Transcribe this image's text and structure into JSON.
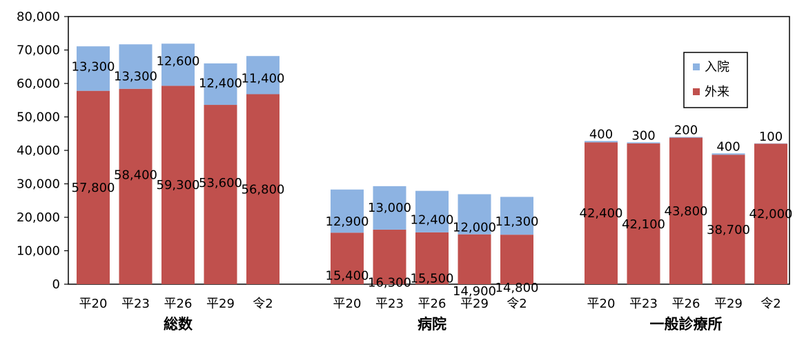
{
  "chart_data": {
    "type": "bar",
    "stacked": true,
    "ylim": [
      0,
      80000
    ],
    "yticks": [
      0,
      10000,
      20000,
      30000,
      40000,
      50000,
      60000,
      70000,
      80000
    ],
    "ytick_labels": [
      "0",
      "10,000",
      "20,000",
      "30,000",
      "40,000",
      "50,000",
      "60,000",
      "70,000",
      "80,000"
    ],
    "grid": false,
    "legend_position": "top-right",
    "series": [
      {
        "name": "外来",
        "color": "#c0504d"
      },
      {
        "name": "入院",
        "color": "#8db3e2"
      }
    ],
    "groups": [
      {
        "name": "総数",
        "bars": [
          {
            "label": "平20",
            "外来": 57800,
            "入院": 13300,
            "外来_label": "57,800",
            "入院_label": "13,300"
          },
          {
            "label": "平23",
            "外来": 58400,
            "入院": 13300,
            "外来_label": "58,400",
            "入院_label": "13,300"
          },
          {
            "label": "平26",
            "外来": 59300,
            "入院": 12600,
            "外来_label": "59,300",
            "入院_label": "12,600"
          },
          {
            "label": "平29",
            "外来": 53600,
            "入院": 12400,
            "外来_label": "53,600",
            "入院_label": "12,400"
          },
          {
            "label": "令2",
            "外来": 56800,
            "入院": 11400,
            "外来_label": "56,800",
            "入院_label": "11,400"
          }
        ]
      },
      {
        "name": "病院",
        "bars": [
          {
            "label": "平20",
            "外来": 15400,
            "入院": 12900,
            "外来_label": "15,400",
            "入院_label": "12,900"
          },
          {
            "label": "平23",
            "外来": 16300,
            "入院": 13000,
            "外来_label": "16,300",
            "入院_label": "13,000"
          },
          {
            "label": "平26",
            "外来": 15500,
            "入院": 12400,
            "外来_label": "15,500",
            "入院_label": "12,400"
          },
          {
            "label": "平29",
            "外来": 14900,
            "入院": 12000,
            "外来_label": "14,900",
            "入院_label": "12,000"
          },
          {
            "label": "令2",
            "外来": 14800,
            "入院": 11300,
            "外来_label": "14,800",
            "入院_label": "11,300"
          }
        ]
      },
      {
        "name": "一般診療所",
        "bars": [
          {
            "label": "平20",
            "外来": 42400,
            "入院": 400,
            "外来_label": "42,400",
            "入院_label": "400"
          },
          {
            "label": "平23",
            "外来": 42100,
            "入院": 300,
            "外来_label": "42,100",
            "入院_label": "300"
          },
          {
            "label": "平26",
            "外来": 43800,
            "入院": 200,
            "外来_label": "43,800",
            "入院_label": "200"
          },
          {
            "label": "平29",
            "外来": 38700,
            "入院": 400,
            "外来_label": "38,700",
            "入院_label": "400"
          },
          {
            "label": "令2",
            "外来": 42000,
            "入院": 100,
            "外来_label": "42,000",
            "入院_label": "100"
          }
        ]
      }
    ],
    "legend": [
      "入院",
      "外来"
    ]
  }
}
